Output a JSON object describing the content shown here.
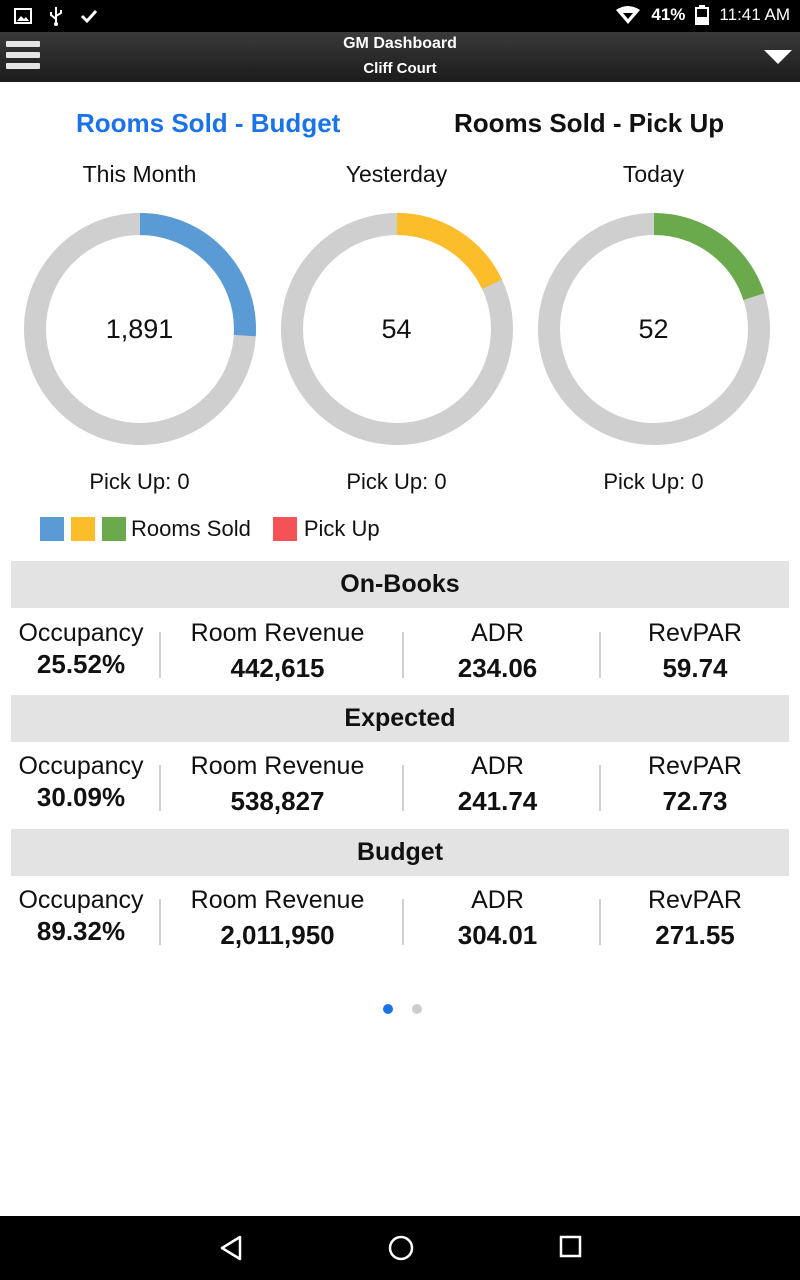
{
  "status_bar": {
    "battery_percent": "41%",
    "time": "11:41 AM",
    "left_icons": [
      "image-icon",
      "usb-icon",
      "check-icon"
    ],
    "right_icons": [
      "wifi-icon",
      "battery-icon"
    ]
  },
  "app_bar": {
    "title": "GM Dashboard",
    "subtitle": "Cliff Court"
  },
  "tabs": {
    "budget_label": "Rooms Sold - Budget",
    "pickup_label": "Rooms Sold - Pick Up"
  },
  "donuts": [
    {
      "label": "This Month",
      "value": "1,891",
      "pickup": "Pick Up: 0",
      "fraction": 0.26,
      "color": "#5b9bd5"
    },
    {
      "label": "Yesterday",
      "value": "54",
      "pickup": "Pick Up: 0",
      "fraction": 0.18,
      "color": "#fbbd2a"
    },
    {
      "label": "Today",
      "value": "52",
      "pickup": "Pick Up: 0",
      "fraction": 0.2,
      "color": "#6aaa4c"
    }
  ],
  "legend": {
    "rooms_sold_label": "Rooms Sold",
    "pickup_label": "Pick Up",
    "rooms_sold_colors": [
      "#5b9bd5",
      "#fbbd2a",
      "#6aaa4c"
    ],
    "pickup_color": "#f55257"
  },
  "sections": [
    {
      "title": "On-Books",
      "metrics": [
        {
          "label": "Occupancy",
          "value": "25.52%"
        },
        {
          "label": "Room Revenue",
          "value": "442,615"
        },
        {
          "label": "ADR",
          "value": "234.06"
        },
        {
          "label": "RevPAR",
          "value": "59.74"
        }
      ]
    },
    {
      "title": "Expected",
      "metrics": [
        {
          "label": "Occupancy",
          "value": "30.09%"
        },
        {
          "label": "Room Revenue",
          "value": "538,827"
        },
        {
          "label": "ADR",
          "value": "241.74"
        },
        {
          "label": "RevPAR",
          "value": "72.73"
        }
      ]
    },
    {
      "title": "Budget",
      "metrics": [
        {
          "label": "Occupancy",
          "value": "89.32%"
        },
        {
          "label": "Room Revenue",
          "value": "2,011,950"
        },
        {
          "label": "ADR",
          "value": "304.01"
        },
        {
          "label": "RevPAR",
          "value": "271.55"
        }
      ]
    }
  ],
  "pager": {
    "pages": 2,
    "current": 1,
    "active_color": "#1a73e8",
    "inactive_color": "#cccccc"
  },
  "nav_bar": {
    "buttons": [
      "back-icon",
      "home-icon",
      "recents-icon"
    ]
  },
  "colors": {
    "accent": "#1a73e8",
    "track": "#cfcfcf"
  }
}
